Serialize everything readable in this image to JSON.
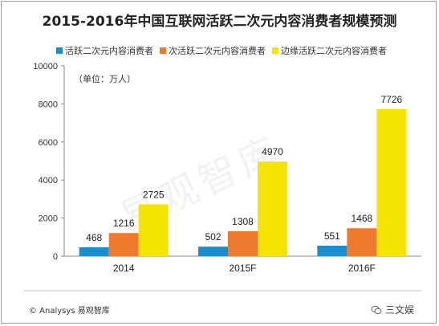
{
  "title": "2015-2016年中国互联网活跃二次元内容消费者规模预测",
  "unit_label": "（单位：万人）",
  "footer": "© Analysys 易观智库",
  "brand": "三文娱",
  "watermark": "易观智库",
  "chart_data": {
    "type": "bar",
    "title": "2015-2016年中国互联网活跃二次元内容消费者规模预测",
    "categories": [
      "2014",
      "2015F",
      "2016F"
    ],
    "series": [
      {
        "name": "活跃二次元内容消费者",
        "color": "#1a8fd0",
        "values": [
          468,
          502,
          551
        ]
      },
      {
        "name": "次活跃二次元内容消费者",
        "color": "#ee7a2e",
        "values": [
          1216,
          1308,
          1468
        ]
      },
      {
        "name": "边缘活跃二次元内容消费者",
        "color": "#f5e400",
        "values": [
          2725,
          4970,
          7726
        ]
      }
    ],
    "yticks": [
      0,
      2000,
      4000,
      6000,
      8000,
      10000
    ],
    "ylim": [
      0,
      10000
    ],
    "xlabel": "",
    "ylabel": "",
    "grid": false,
    "legend_position": "top"
  }
}
